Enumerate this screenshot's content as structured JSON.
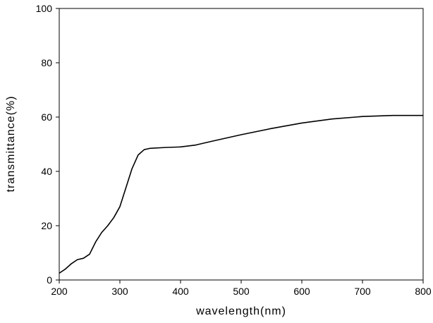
{
  "chart_data": {
    "type": "line",
    "x_label": "wavelength(nm)",
    "y_label": "transmittance(%)",
    "x": [
      200,
      210,
      220,
      230,
      240,
      250,
      260,
      270,
      280,
      290,
      300,
      310,
      320,
      330,
      340,
      350,
      375,
      400,
      425,
      450,
      500,
      550,
      600,
      650,
      700,
      750,
      800
    ],
    "series": [
      {
        "name": "transmittance",
        "color": "#000000",
        "values": [
          2.5,
          4,
          6,
          7.5,
          8,
          9.5,
          14,
          17.5,
          20,
          23,
          27,
          34,
          41,
          46,
          48,
          48.5,
          48.8,
          49,
          49.7,
          51,
          53.5,
          55.8,
          57.8,
          59.3,
          60.2,
          60.6,
          60.6
        ]
      }
    ],
    "xlim": [
      200,
      800
    ],
    "xticks": [
      200,
      300,
      400,
      500,
      600,
      700,
      800
    ],
    "ylim": [
      0,
      100
    ],
    "yticks": [
      0,
      20,
      40,
      60,
      80,
      100
    ],
    "grid": false
  }
}
